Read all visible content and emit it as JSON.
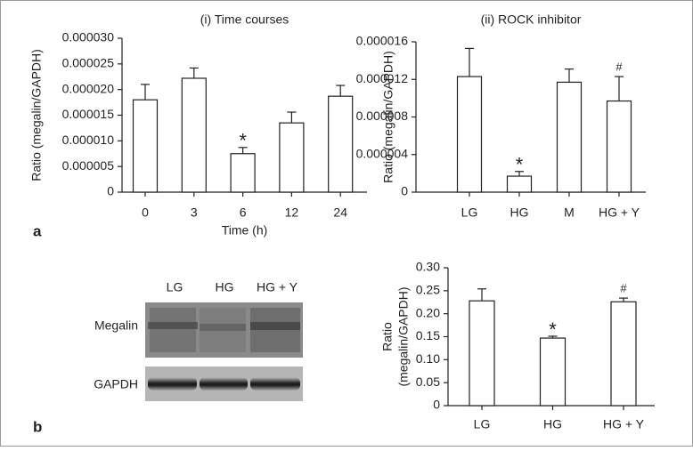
{
  "chart_data": [
    {
      "type": "bar",
      "title": "(i) Time courses",
      "xlabel": "Time (h)",
      "ylabel": [
        "Ratio (megalin/GAPDH)"
      ],
      "categories": [
        "0",
        "3",
        "6",
        "12",
        "24"
      ],
      "values": [
        1.8e-05,
        2.22e-05,
        7.5e-06,
        1.35e-05,
        1.87e-05
      ],
      "errors": [
        3e-06,
        2e-06,
        1.2e-06,
        2.1e-06,
        2.1e-06
      ],
      "annotations": [
        {
          "category": "6",
          "text": "*"
        }
      ],
      "color": "#ffffff",
      "ylim": [
        0,
        3e-05
      ],
      "yticks": [
        0,
        {
          "value": 5e-06,
          "label": "0.000005"
        },
        {
          "value": 1e-05,
          "label": "0.000010"
        },
        {
          "value": 1.5e-05,
          "label": "0.000015"
        },
        {
          "value": 2e-05,
          "label": "0.000020"
        },
        {
          "value": 2.5e-05,
          "label": "0.000025"
        },
        {
          "value": 3e-05,
          "label": "0.000030"
        }
      ]
    },
    {
      "type": "bar",
      "title": "(ii) ROCK inhibitor",
      "ylabel": [
        "Ratio (megalin/GAPDH)"
      ],
      "categories": [
        "LG",
        "HG",
        "M",
        "HG + Y"
      ],
      "values": [
        1.23e-05,
        1.7e-06,
        1.17e-05,
        9.7e-06
      ],
      "errors": [
        3e-06,
        5e-07,
        1.4e-06,
        2.6e-06
      ],
      "annotations": [
        {
          "category": "HG",
          "text": "*"
        },
        {
          "category": "HG + Y",
          "text": "#"
        }
      ],
      "color": "#ffffff",
      "ylim": [
        0,
        1.6e-05
      ],
      "yticks": [
        0,
        {
          "value": 4e-06,
          "label": "0.000004"
        },
        {
          "value": 8e-06,
          "label": "0.000008"
        },
        {
          "value": 1.2e-05,
          "label": "0.000012"
        },
        {
          "value": 1.6e-05,
          "label": "0.000016"
        }
      ]
    },
    {
      "type": "bar",
      "ylabel": [
        "Ratio",
        "(megalin/GAPDH)"
      ],
      "categories": [
        "LG",
        "HG",
        "HG + Y"
      ],
      "values": [
        0.228,
        0.147,
        0.226
      ],
      "errors": [
        0.026,
        0.004,
        0.008
      ],
      "annotations": [
        {
          "category": "HG",
          "text": "*"
        },
        {
          "category": "HG + Y",
          "text": "#"
        }
      ],
      "color": "#ffffff",
      "ylim": [
        0,
        0.3
      ],
      "yticks": [
        0,
        {
          "value": 0.05,
          "label": "0.05"
        },
        {
          "value": 0.1,
          "label": "0.10"
        },
        {
          "value": 0.15,
          "label": "0.15"
        },
        {
          "value": 0.2,
          "label": "0.20"
        },
        {
          "value": 0.25,
          "label": "0.25"
        },
        {
          "value": 0.3,
          "label": "0.30"
        }
      ]
    }
  ],
  "panels": {
    "a": "a",
    "b": "b"
  },
  "blot": {
    "lanes": [
      "LG",
      "HG",
      "HG + Y"
    ],
    "rows": [
      "Megalin",
      "GAPDH"
    ]
  }
}
